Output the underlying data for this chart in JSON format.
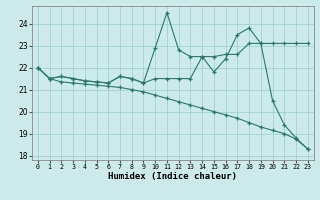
{
  "xlabel": "Humidex (Indice chaleur)",
  "xlim": [
    -0.5,
    23.5
  ],
  "ylim": [
    17.8,
    24.8
  ],
  "yticks": [
    18,
    19,
    20,
    21,
    22,
    23,
    24
  ],
  "xticks": [
    0,
    1,
    2,
    3,
    4,
    5,
    6,
    7,
    8,
    9,
    10,
    11,
    12,
    13,
    14,
    15,
    16,
    17,
    18,
    19,
    20,
    21,
    22,
    23
  ],
  "bg_color": "#cceaea",
  "grid_color": "#99cccc",
  "line_color": "#2a7a6a",
  "line1_x": [
    0,
    1,
    2,
    3,
    4,
    5,
    6,
    7,
    8,
    9,
    10,
    11,
    12,
    13,
    14,
    15,
    16,
    17,
    18,
    19,
    20,
    21,
    22,
    23
  ],
  "line1_y": [
    22.0,
    21.5,
    21.6,
    21.5,
    21.4,
    21.35,
    21.3,
    21.6,
    21.5,
    21.3,
    22.9,
    24.5,
    22.8,
    22.5,
    22.5,
    21.8,
    22.4,
    23.5,
    23.8,
    23.1,
    20.5,
    19.4,
    18.8,
    18.3
  ],
  "line2_x": [
    0,
    1,
    2,
    3,
    4,
    5,
    6,
    7,
    8,
    9,
    10,
    11,
    12,
    13,
    14,
    15,
    16,
    17,
    18,
    19,
    20,
    21,
    22,
    23
  ],
  "line2_y": [
    22.0,
    21.5,
    21.6,
    21.5,
    21.4,
    21.35,
    21.3,
    21.6,
    21.5,
    21.3,
    21.5,
    21.5,
    21.5,
    21.5,
    22.5,
    22.5,
    22.6,
    22.6,
    23.1,
    23.1,
    23.1,
    23.1,
    23.1,
    23.1
  ],
  "line3_x": [
    0,
    1,
    2,
    3,
    4,
    5,
    6,
    7,
    8,
    9,
    10,
    11,
    12,
    13,
    14,
    15,
    16,
    17,
    18,
    19,
    20,
    21,
    22,
    23
  ],
  "line3_y": [
    22.0,
    21.5,
    21.35,
    21.3,
    21.25,
    21.2,
    21.15,
    21.1,
    21.0,
    20.9,
    20.75,
    20.6,
    20.45,
    20.3,
    20.15,
    20.0,
    19.85,
    19.7,
    19.5,
    19.3,
    19.15,
    19.0,
    18.75,
    18.3
  ]
}
